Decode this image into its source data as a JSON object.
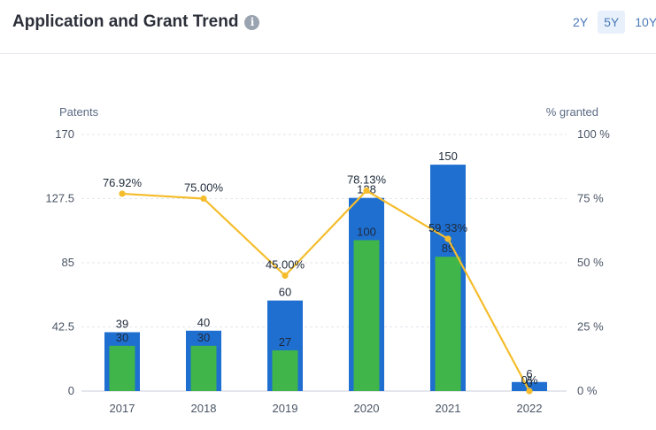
{
  "header": {
    "title": "Application and Grant Trend",
    "info_icon": "info-icon",
    "range_tabs": [
      {
        "label": "2Y",
        "active": false
      },
      {
        "label": "5Y",
        "active": true
      },
      {
        "label": "10Y",
        "active": false
      }
    ]
  },
  "colors": {
    "applications": "#1f6fd1",
    "grants": "#3fb54a",
    "grant_rate_line": "#f5bd2c"
  },
  "chart_data": {
    "type": "bar",
    "categories": [
      "2017",
      "2018",
      "2019",
      "2020",
      "2021",
      "2022"
    ],
    "left_axis": {
      "label": "Patents",
      "ylim": [
        0,
        170
      ],
      "ticks": [
        "0",
        "42.5",
        "85",
        "127.5",
        "170"
      ]
    },
    "right_axis": {
      "label": "% granted",
      "ylim": [
        0,
        100
      ],
      "ticks": [
        "0 %",
        "25 %",
        "50 %",
        "75 %",
        "100 %"
      ]
    },
    "grid": true,
    "series": [
      {
        "type": "bar",
        "values": [
          39,
          40,
          60,
          128,
          150,
          6
        ],
        "labels": [
          "39",
          "40",
          "60",
          "128",
          "150",
          "6"
        ]
      },
      {
        "type": "bar",
        "values": [
          30,
          30,
          27,
          100,
          89,
          0
        ],
        "labels": [
          "30",
          "30",
          "27",
          "100",
          "89",
          "0"
        ]
      },
      {
        "type": "line",
        "axis": "right",
        "values": [
          76.92,
          75.0,
          45.0,
          78.13,
          59.33,
          0
        ],
        "labels": [
          "76.92%",
          "75.00%",
          "45.00%",
          "78.13%",
          "59.33%",
          "0%"
        ]
      }
    ]
  }
}
